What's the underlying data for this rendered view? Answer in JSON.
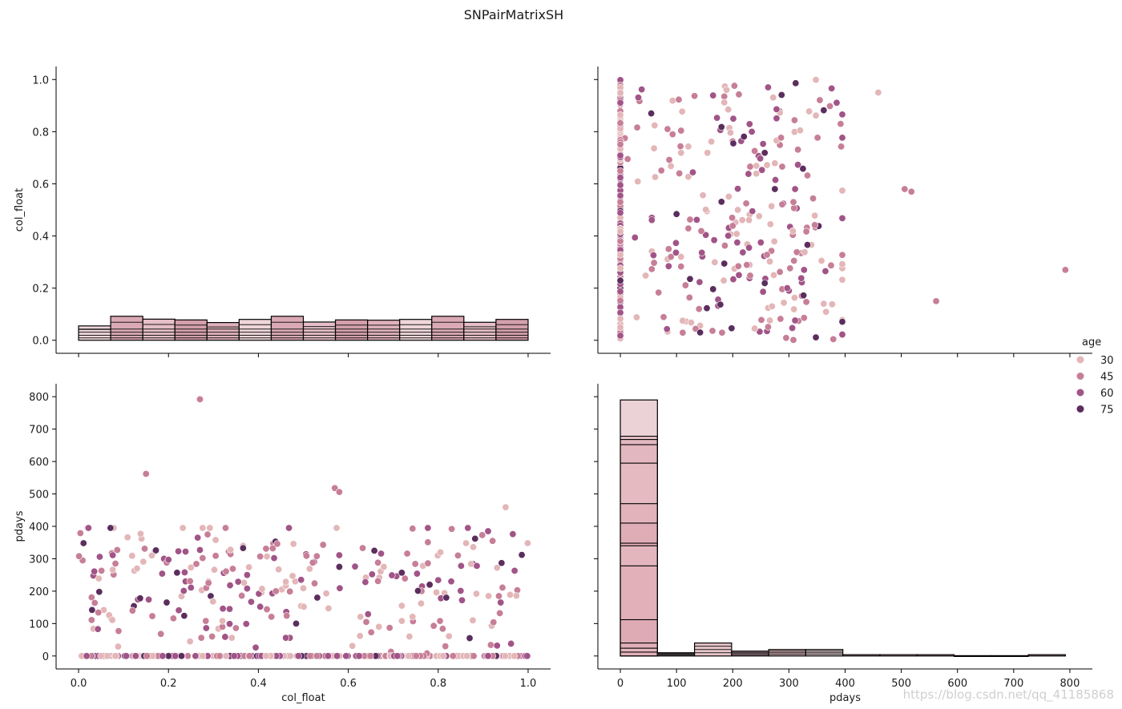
{
  "figure": {
    "title": "SNPairMatrixSH",
    "watermark": "https://blog.csdn.net/qq_41185868"
  },
  "chart_data": {
    "type": "pairplot",
    "variables": [
      "col_float",
      "pdays"
    ],
    "hue": {
      "name": "age",
      "legend_title": "age",
      "levels": [
        30,
        45,
        60,
        75
      ],
      "level_labels": [
        "30",
        "45",
        "60",
        "75"
      ],
      "colors": [
        "#e3b6b8",
        "#c77e97",
        "#a15487",
        "#5b2e5e"
      ]
    },
    "axes": {
      "col_float": {
        "label": "col_float",
        "range": [
          -0.05,
          1.05
        ],
        "ticks": [
          0.0,
          0.2,
          0.4,
          0.6,
          0.8,
          1.0
        ],
        "tick_labels": [
          "0.0",
          "0.2",
          "0.4",
          "0.6",
          "0.8",
          "1.0"
        ]
      },
      "pdays": {
        "label": "pdays",
        "range": [
          -40,
          840
        ],
        "ticks": [
          0,
          100,
          200,
          300,
          400,
          500,
          600,
          700,
          800
        ],
        "tick_labels": [
          "0",
          "100",
          "200",
          "300",
          "400",
          "500",
          "600",
          "700",
          "800"
        ]
      }
    },
    "hist_col_float": {
      "type": "histogram",
      "bin_edges": [
        0.0,
        0.0714,
        0.1429,
        0.2143,
        0.2857,
        0.3571,
        0.4286,
        0.5,
        0.5714,
        0.6429,
        0.7143,
        0.7857,
        0.8571,
        0.9286,
        1.0
      ],
      "totals_in_y_units": [
        0.055,
        0.092,
        0.081,
        0.078,
        0.068,
        0.08,
        0.092,
        0.07,
        0.078,
        0.077,
        0.08,
        0.092,
        0.069,
        0.08
      ],
      "stack_lines_in_y_units": [
        0.009,
        0.019,
        0.031,
        0.043
      ]
    },
    "hist_pdays": {
      "type": "histogram",
      "bin_edges": [
        0,
        66,
        132,
        198,
        264,
        330,
        396,
        462,
        528,
        594,
        660,
        726,
        792
      ],
      "counts": [
        790,
        10,
        40,
        15,
        20,
        20,
        4,
        4,
        4,
        1,
        1,
        4
      ],
      "first_bin_stack_lines": [
        678,
        668,
        652,
        595,
        470,
        410,
        348,
        340,
        278,
        112,
        40,
        24,
        12
      ]
    },
    "notable_points": [
      {
        "col_float": 0.27,
        "pdays": 792,
        "age": 45
      },
      {
        "col_float": 0.15,
        "pdays": 562,
        "age": 45
      },
      {
        "col_float": 0.57,
        "pdays": 518,
        "age": 45
      },
      {
        "col_float": 0.58,
        "pdays": 506,
        "age": 45
      },
      {
        "col_float": 0.95,
        "pdays": 459,
        "age": 30
      },
      {
        "col_float": 0.87,
        "pdays": 55,
        "age": 75
      }
    ],
    "scatter_summary": {
      "n_points_estimated": 520,
      "pdays_zero_cluster_fraction": 0.5,
      "pdays_nonzero_range": [
        1,
        400
      ]
    }
  }
}
